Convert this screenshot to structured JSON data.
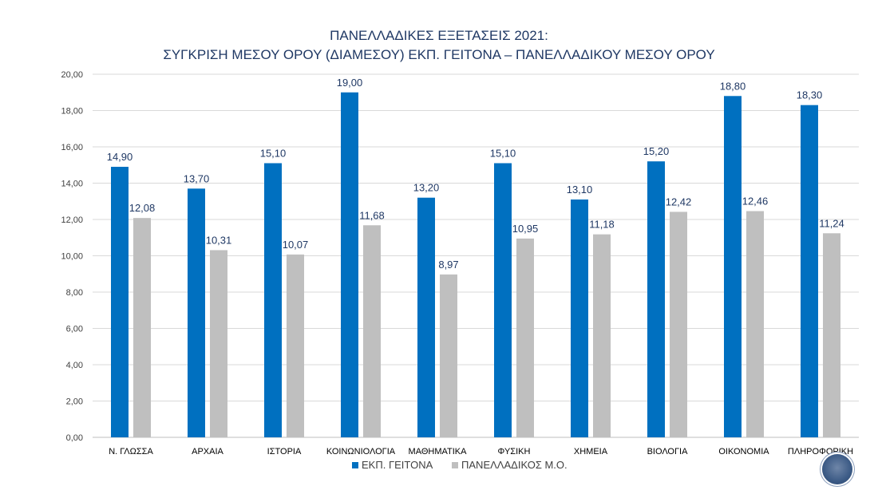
{
  "chart_data": {
    "type": "bar",
    "title": [
      "ΠΑΝΕΛΛΑΔΙΚΕΣ ΕΞΕΤΑΣΕΙΣ 2021:",
      "ΣΥΓΚΡΙΣΗ ΜΕΣΟΥ ΟΡΟΥ (ΔΙΑΜΕΣΟΥ) ΕΚΠ. ΓΕΙΤΟΝΑ – ΠΑΝΕΛΛΑΔΙΚΟΥ ΜΕΣΟΥ ΟΡΟΥ"
    ],
    "categories": [
      "Ν. ΓΛΩΣΣΑ",
      "ΑΡΧΑΙΑ",
      "ΙΣΤΟΡΙΑ",
      "ΚΟΙΝΩΝΙΟΛΟΓΙΑ",
      "ΜΑΘΗΜΑΤΙΚΑ",
      "ΦΥΣΙΚΗ",
      "ΧΗΜΕΙΑ",
      "ΒΙΟΛΟΓΙΑ",
      "ΟΙΚΟΝΟΜΙΑ",
      "ΠΛΗΡΟΦΟΡΙΚΗ"
    ],
    "series": [
      {
        "name": "ΕΚΠ. ΓΕΙΤΟΝΑ",
        "color": "#0070c0",
        "values": [
          14.9,
          13.7,
          15.1,
          19.0,
          13.2,
          15.1,
          13.1,
          15.2,
          18.8,
          18.3
        ],
        "labels": [
          "14,90",
          "13,70",
          "15,10",
          "19,00",
          "13,20",
          "15,10",
          "13,10",
          "15,20",
          "18,80",
          "18,30"
        ]
      },
      {
        "name": "ΠΑΝΕΛΛΑΔΙΚΟΣ Μ.Ο.",
        "color": "#bfbfbf",
        "values": [
          12.08,
          10.31,
          10.07,
          11.68,
          8.97,
          10.95,
          11.18,
          12.42,
          12.46,
          11.24
        ],
        "labels": [
          "12,08",
          "10,31",
          "10,07",
          "11,68",
          "8,97",
          "10,95",
          "11,18",
          "12,42",
          "12,46",
          "11,24"
        ]
      }
    ],
    "ylim": [
      0,
      20
    ],
    "yticks": [
      "0,00",
      "2,00",
      "4,00",
      "6,00",
      "8,00",
      "10,00",
      "12,00",
      "14,00",
      "16,00",
      "18,00",
      "20,00"
    ],
    "grid": true,
    "legend": "bottom"
  }
}
